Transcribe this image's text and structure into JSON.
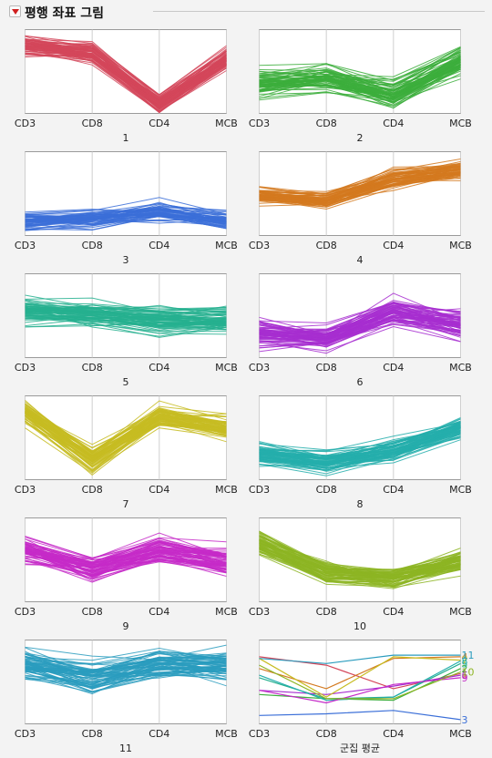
{
  "header": {
    "title": "평행 좌표 그림"
  },
  "chart_data": {
    "type": "line",
    "subtype": "parallel-coordinates",
    "axes": [
      "CD3",
      "CD8",
      "CD4",
      "MCB"
    ],
    "ylim": [
      0,
      1
    ],
    "panels": [
      {
        "title": "1",
        "color": "#d4465a",
        "mean": [
          0.8,
          0.72,
          0.12,
          0.65
        ],
        "spread": 0.07,
        "lines": 70
      },
      {
        "title": "2",
        "color": "#3cae3c",
        "mean": [
          0.34,
          0.4,
          0.22,
          0.62
        ],
        "spread": 0.1,
        "lines": 70
      },
      {
        "title": "3",
        "color": "#3b6fd8",
        "mean": [
          0.18,
          0.2,
          0.28,
          0.18
        ],
        "spread": 0.08,
        "lines": 55
      },
      {
        "title": "4",
        "color": "#d3791f",
        "mean": [
          0.48,
          0.42,
          0.68,
          0.78
        ],
        "spread": 0.07,
        "lines": 60
      },
      {
        "title": "5",
        "color": "#26b08f",
        "mean": [
          0.56,
          0.52,
          0.45,
          0.45
        ],
        "spread": 0.09,
        "lines": 70
      },
      {
        "title": "6",
        "color": "#a72ed0",
        "mean": [
          0.3,
          0.25,
          0.55,
          0.4
        ],
        "spread": 0.1,
        "lines": 70
      },
      {
        "title": "7",
        "color": "#c7bc22",
        "mean": [
          0.8,
          0.25,
          0.75,
          0.62
        ],
        "spread": 0.09,
        "lines": 70
      },
      {
        "title": "8",
        "color": "#25aeac",
        "mean": [
          0.32,
          0.22,
          0.35,
          0.62
        ],
        "spread": 0.08,
        "lines": 70
      },
      {
        "title": "9",
        "color": "#c52ac8",
        "mean": [
          0.62,
          0.4,
          0.62,
          0.48
        ],
        "spread": 0.1,
        "lines": 70
      },
      {
        "title": "10",
        "color": "#8db523",
        "mean": [
          0.7,
          0.35,
          0.28,
          0.48
        ],
        "spread": 0.08,
        "lines": 70
      },
      {
        "title": "11",
        "color": "#2a9cbe",
        "mean": [
          0.72,
          0.55,
          0.7,
          0.7
        ],
        "spread": 0.12,
        "lines": 70
      }
    ],
    "summary": {
      "title": "군집 평균",
      "series": [
        {
          "name": "1",
          "color": "#d4465a",
          "values": [
            0.8,
            0.7,
            0.42,
            0.6
          ]
        },
        {
          "name": "2",
          "color": "#3cae3c",
          "values": [
            0.35,
            0.3,
            0.28,
            0.66
          ]
        },
        {
          "name": "3",
          "color": "#3b6fd8",
          "values": [
            0.1,
            0.12,
            0.16,
            0.05
          ]
        },
        {
          "name": "4",
          "color": "#d3791f",
          "values": [
            0.66,
            0.42,
            0.78,
            0.8
          ]
        },
        {
          "name": "5",
          "color": "#26b08f",
          "values": [
            0.55,
            0.3,
            0.32,
            0.72
          ]
        },
        {
          "name": "6",
          "color": "#a72ed0",
          "values": [
            0.4,
            0.35,
            0.45,
            0.58
          ]
        },
        {
          "name": "7",
          "color": "#c7bc22",
          "values": [
            0.78,
            0.32,
            0.8,
            0.76
          ]
        },
        {
          "name": "8",
          "color": "#25aeac",
          "values": [
            0.58,
            0.28,
            0.32,
            0.75
          ]
        },
        {
          "name": "9",
          "color": "#c52ac8",
          "values": [
            0.4,
            0.25,
            0.47,
            0.55
          ]
        },
        {
          "name": "10",
          "color": "#8db523",
          "values": [
            0.7,
            0.3,
            0.3,
            0.62
          ]
        },
        {
          "name": "11",
          "color": "#2a9cbe",
          "values": [
            0.78,
            0.72,
            0.82,
            0.82
          ]
        }
      ]
    }
  }
}
